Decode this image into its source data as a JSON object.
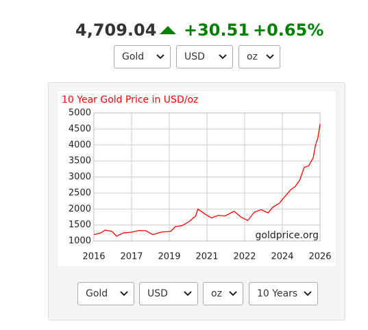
{
  "header": {
    "price": "4,709.04",
    "change": "+30.51",
    "change_percent": "+0.65%"
  },
  "top_selectors": [
    "Gold",
    "USD",
    "oz"
  ],
  "chart_data": {
    "type": "line",
    "title": "10 Year Gold Price in USD/oz",
    "watermark": "goldprice.org",
    "x": [
      2016.0,
      2016.3,
      2016.5,
      2016.8,
      2017.0,
      2017.3,
      2017.7,
      2018.0,
      2018.3,
      2018.6,
      2019.0,
      2019.4,
      2019.6,
      2019.9,
      2020.2,
      2020.5,
      2020.6,
      2020.9,
      2021.2,
      2021.5,
      2021.8,
      2022.2,
      2022.5,
      2022.8,
      2023.1,
      2023.4,
      2023.7,
      2023.9,
      2024.2,
      2024.4,
      2024.7,
      2024.9,
      2025.1,
      2025.3,
      2025.5,
      2025.7,
      2025.8,
      2025.9,
      2026.0
    ],
    "values": [
      1200,
      1250,
      1340,
      1300,
      1150,
      1250,
      1280,
      1330,
      1320,
      1200,
      1280,
      1300,
      1450,
      1480,
      1600,
      1780,
      2000,
      1850,
      1720,
      1800,
      1780,
      1930,
      1750,
      1640,
      1900,
      1980,
      1880,
      2050,
      2180,
      2350,
      2600,
      2700,
      2900,
      3300,
      3350,
      3600,
      4000,
      4200,
      4650
    ],
    "color": "#ff0000",
    "xlim": [
      2016,
      2026
    ],
    "xticks": [
      2016,
      {
        "value": 2017.667,
        "label": "2017"
      },
      {
        "value": 2019.333,
        "label": "2019"
      },
      2021,
      {
        "value": 2022.667,
        "label": "2022"
      },
      {
        "value": 2024.333,
        "label": "2024"
      },
      2026
    ],
    "ylim": [
      1000,
      5000
    ],
    "yticks": [
      1000,
      1500,
      2000,
      2500,
      3000,
      3500,
      4000,
      4500,
      5000
    ],
    "grid": true
  },
  "bottom_selectors": [
    "Gold",
    "USD",
    "oz",
    "10 Years"
  ]
}
